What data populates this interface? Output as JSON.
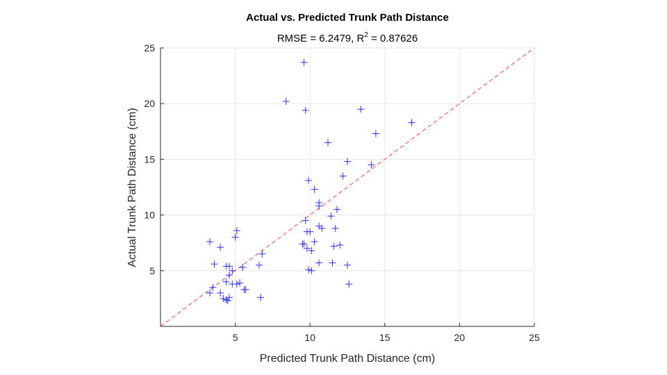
{
  "chart_data": {
    "type": "scatter",
    "title": "Actual vs. Predicted Trunk Path Distance",
    "subtitle": {
      "prefix": "RMSE = 6.2479, R",
      "superscript": "2",
      "suffix": " = 0.87626"
    },
    "xlabel": "Predicted Trunk Path Distance (cm)",
    "ylabel": "Actual Trunk Path Distance (cm)",
    "xlim": [
      0,
      25
    ],
    "ylim": [
      0,
      25
    ],
    "xticks": [
      "5",
      "10",
      "15",
      "20",
      "25"
    ],
    "yticks": [
      "5",
      "10",
      "15",
      "20",
      "25"
    ],
    "grid": true,
    "colors": {
      "points": "#2b2bff",
      "reference_line": "#ff5c5c",
      "grid": "#e6e6e6",
      "axis": "#262626"
    },
    "reference_line": {
      "type": "dashed",
      "from": [
        0,
        0
      ],
      "to": [
        25,
        25
      ]
    },
    "points": [
      [
        9.6,
        23.7
      ],
      [
        8.4,
        20.2
      ],
      [
        9.7,
        19.4
      ],
      [
        13.4,
        19.5
      ],
      [
        16.8,
        18.3
      ],
      [
        14.4,
        17.3
      ],
      [
        11.2,
        16.5
      ],
      [
        12.5,
        14.8
      ],
      [
        14.1,
        14.5
      ],
      [
        12.2,
        13.5
      ],
      [
        9.9,
        13.1
      ],
      [
        10.3,
        12.3
      ],
      [
        10.6,
        11.1
      ],
      [
        10.6,
        10.8
      ],
      [
        11.8,
        10.5
      ],
      [
        11.4,
        9.9
      ],
      [
        9.7,
        9.5
      ],
      [
        10.6,
        9.0
      ],
      [
        10.8,
        8.8
      ],
      [
        11.7,
        8.8
      ],
      [
        9.8,
        8.5
      ],
      [
        10.0,
        8.5
      ],
      [
        10.3,
        7.6
      ],
      [
        9.5,
        7.4
      ],
      [
        9.6,
        7.4
      ],
      [
        12.0,
        7.3
      ],
      [
        11.6,
        7.2
      ],
      [
        9.8,
        7.0
      ],
      [
        10.1,
        6.8
      ],
      [
        10.6,
        5.7
      ],
      [
        11.5,
        5.7
      ],
      [
        12.5,
        5.5
      ],
      [
        9.9,
        5.1
      ],
      [
        10.1,
        5.0
      ],
      [
        12.6,
        3.8
      ],
      [
        5.1,
        8.6
      ],
      [
        5.0,
        8.0
      ],
      [
        3.3,
        7.6
      ],
      [
        4.0,
        7.1
      ],
      [
        6.8,
        6.5
      ],
      [
        3.6,
        5.6
      ],
      [
        6.6,
        5.5
      ],
      [
        4.4,
        5.4
      ],
      [
        4.6,
        5.4
      ],
      [
        5.5,
        5.3
      ],
      [
        4.8,
        5.0
      ],
      [
        4.6,
        4.6
      ],
      [
        4.4,
        4.0
      ],
      [
        4.8,
        3.8
      ],
      [
        5.1,
        3.8
      ],
      [
        5.3,
        3.9
      ],
      [
        5.6,
        3.3
      ],
      [
        5.7,
        3.3
      ],
      [
        3.5,
        3.5
      ],
      [
        3.3,
        3.0
      ],
      [
        4.0,
        3.0
      ],
      [
        4.2,
        2.5
      ],
      [
        4.4,
        2.4
      ],
      [
        4.6,
        2.6
      ],
      [
        4.5,
        2.3
      ],
      [
        6.7,
        2.6
      ]
    ]
  }
}
